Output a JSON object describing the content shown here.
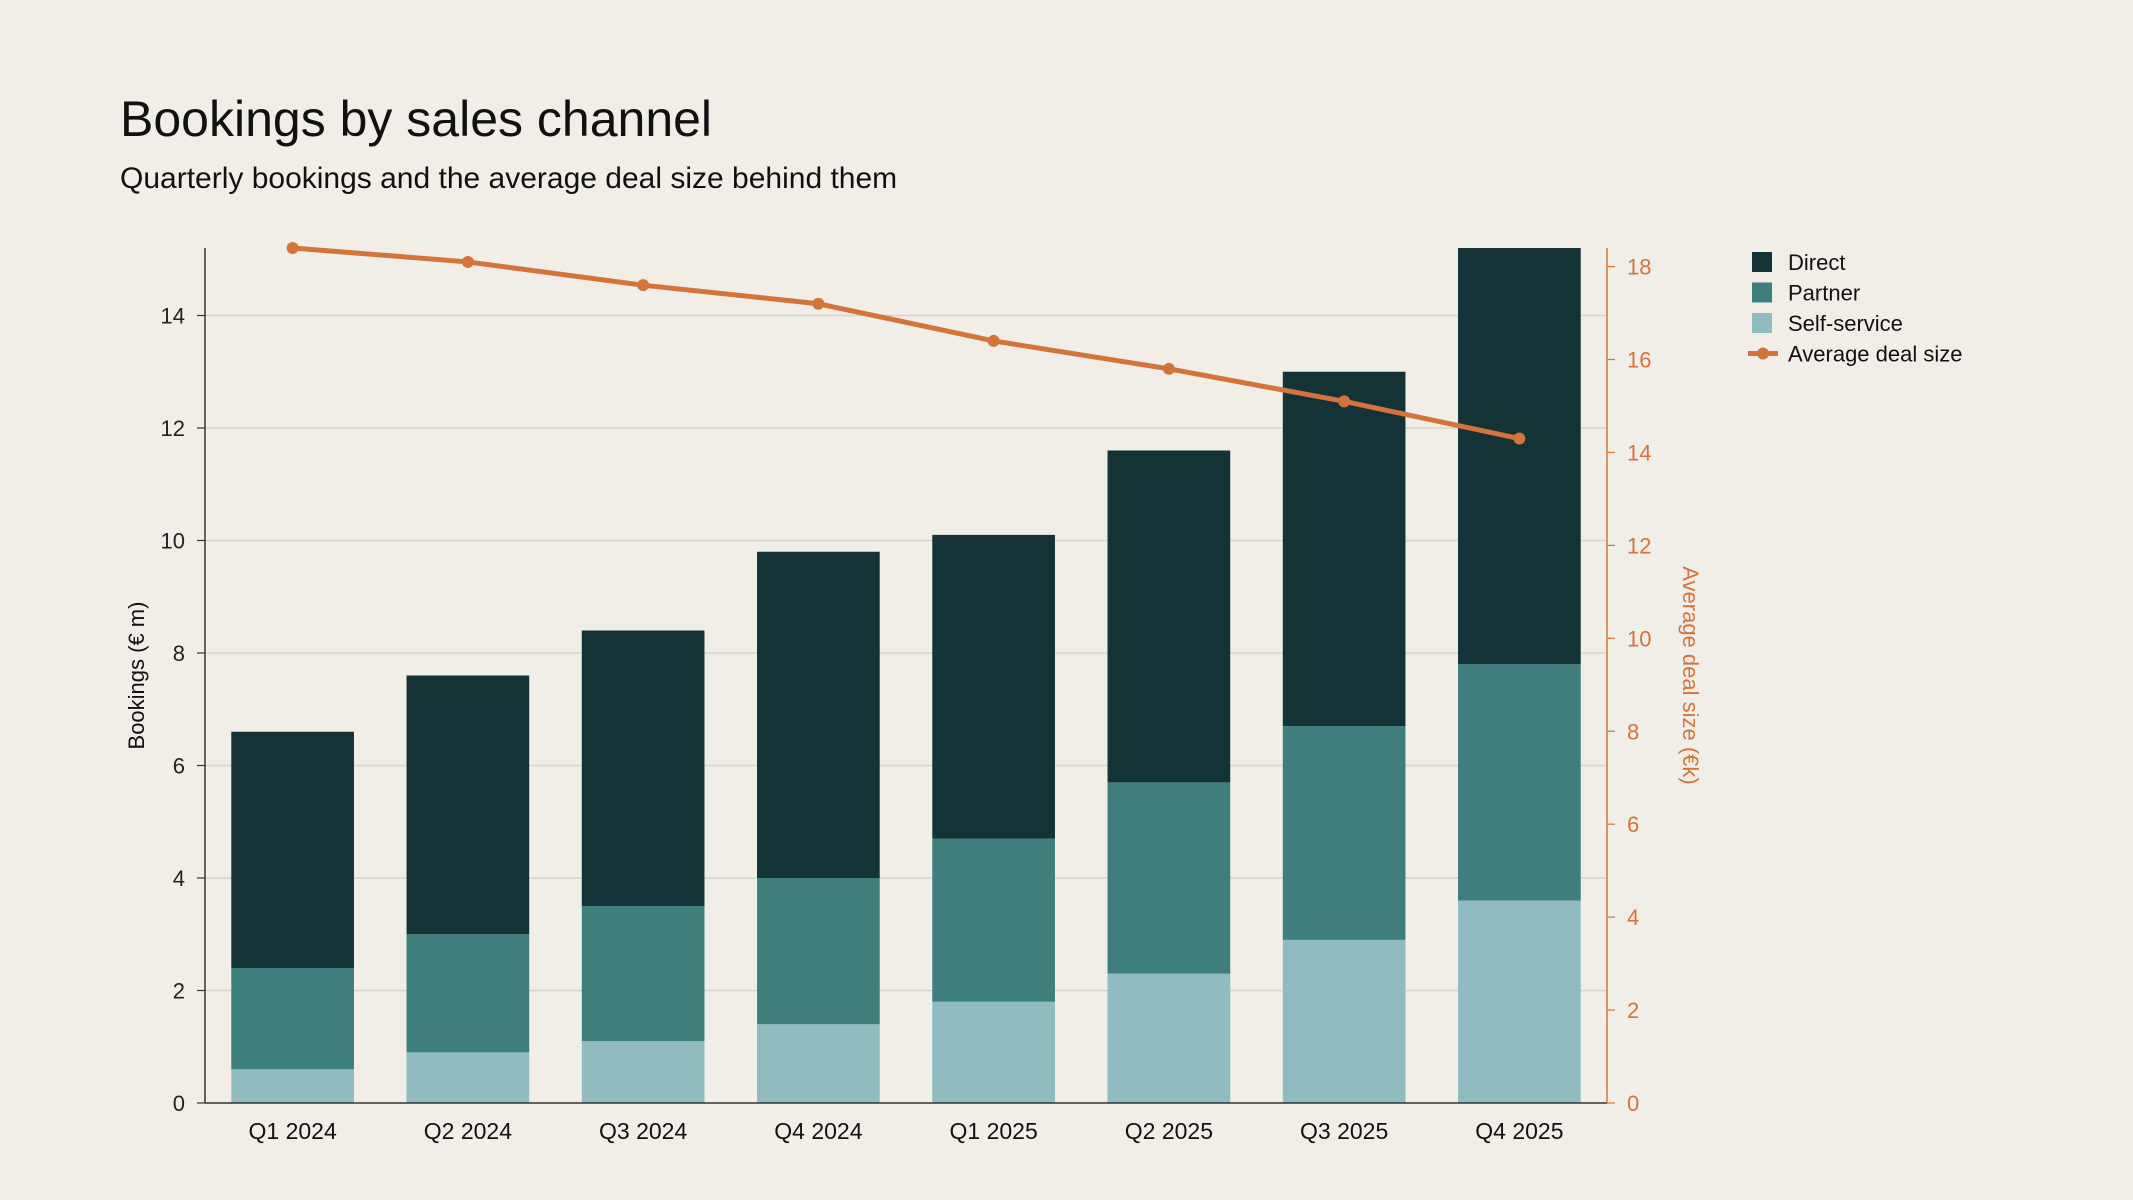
{
  "chart_data": {
    "type": "bar",
    "stacked": true,
    "title": "Bookings by sales channel",
    "subtitle": "Quarterly bookings and the average deal size behind them",
    "categories": [
      "Q1 2024",
      "Q2 2024",
      "Q3 2024",
      "Q4 2024",
      "Q1 2025",
      "Q2 2025",
      "Q3 2025",
      "Q4 2025"
    ],
    "series": [
      {
        "name": "Self-service",
        "type": "bar",
        "axis": "left",
        "color": "#90bbc1",
        "values": [
          0.6,
          0.9,
          1.1,
          1.4,
          1.8,
          2.3,
          2.9,
          3.6
        ]
      },
      {
        "name": "Partner",
        "type": "bar",
        "axis": "left",
        "color": "#3e7e7c",
        "values": [
          1.8,
          2.1,
          2.4,
          2.6,
          2.9,
          3.4,
          3.8,
          4.2
        ]
      },
      {
        "name": "Direct",
        "type": "bar",
        "axis": "left",
        "color": "#133337",
        "values": [
          4.2,
          4.6,
          4.9,
          5.8,
          5.4,
          5.9,
          6.3,
          7.4
        ]
      },
      {
        "name": "Average deal size",
        "type": "line",
        "axis": "right",
        "color": "#d4733a",
        "values": [
          18.4,
          18.1,
          17.6,
          17.2,
          16.4,
          15.8,
          15.1,
          14.3
        ]
      }
    ],
    "ylabel": "Bookings (€ m)",
    "ylim": [
      0,
      15.2
    ],
    "yticks": [
      "0",
      "2",
      "4",
      "6",
      "8",
      "10",
      "12",
      "14"
    ],
    "y2label": "Average deal size (€k)",
    "y2lim": [
      0,
      18.4
    ],
    "y2ticks": [
      "0",
      "2",
      "4",
      "6",
      "8",
      "10",
      "12",
      "14",
      "16",
      "18"
    ],
    "legend": {
      "placement": "top-right",
      "entries": [
        "Direct",
        "Partner",
        "Self-service",
        "Average deal size"
      ]
    },
    "grid": "horizontal"
  }
}
